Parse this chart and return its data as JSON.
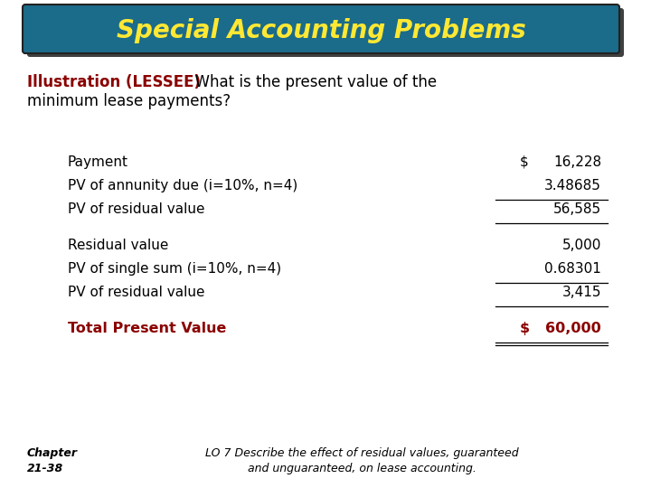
{
  "title": "Special Accounting Problems",
  "title_color": "#FFE833",
  "title_bg_color": "#1B6B8A",
  "title_shadow_color": "#404040",
  "illustration_label": "Illustration (LESSEE)",
  "illustration_label_color": "#8B0000",
  "subtitle_part1": "  What is the present value of the",
  "subtitle_part2": "minimum lease payments?",
  "subtitle_color": "#000000",
  "rows": [
    {
      "label": "Payment",
      "col1": "$",
      "col2": "16,228",
      "underline": false,
      "double_underline": false,
      "bold": false,
      "gap_before": false
    },
    {
      "label": "PV of annunity due (i=10%, n=4)",
      "col1": "",
      "col2": "3.48685",
      "underline": true,
      "double_underline": false,
      "bold": false,
      "gap_before": false
    },
    {
      "label": "PV of residual value",
      "col1": "",
      "col2": "56,585",
      "underline": true,
      "double_underline": false,
      "bold": false,
      "gap_before": false
    },
    {
      "label": "Residual value",
      "col1": "",
      "col2": "5,000",
      "underline": false,
      "double_underline": false,
      "bold": false,
      "gap_before": true
    },
    {
      "label": "PV of single sum (i=10%, n=4)",
      "col1": "",
      "col2": "0.68301",
      "underline": true,
      "double_underline": false,
      "bold": false,
      "gap_before": false
    },
    {
      "label": "PV of residual value",
      "col1": "",
      "col2": "3,415",
      "underline": true,
      "double_underline": false,
      "bold": false,
      "gap_before": false
    },
    {
      "label": "Total Present Value",
      "col1": "$",
      "col2": "60,000",
      "underline": true,
      "double_underline": true,
      "bold": true,
      "gap_before": true
    }
  ],
  "total_color": "#8B0000",
  "footer_left": "Chapter\n21-38",
  "footer_right": "LO 7 Describe the effect of residual values, guaranteed\nand unguaranteed, on lease accounting.",
  "footer_color": "#000000",
  "bg_color": "#FFFFFF"
}
